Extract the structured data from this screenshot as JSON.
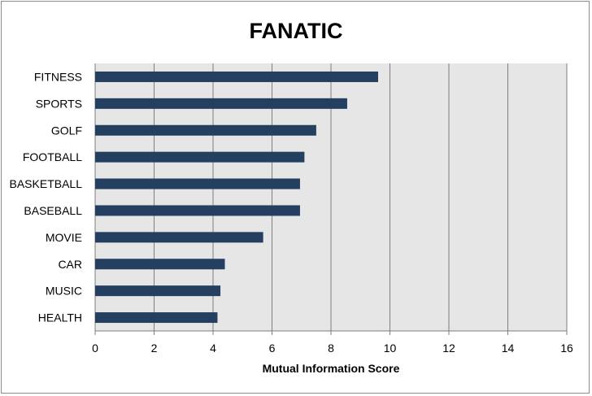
{
  "chart_data": {
    "type": "bar",
    "orientation": "horizontal",
    "title": "FANATIC",
    "xlabel": "Mutual Information Score",
    "ylabel": "",
    "categories": [
      "FITNESS",
      "SPORTS",
      "GOLF",
      "FOOTBALL",
      "BASKETBALL",
      "BASEBALL",
      "MOVIE",
      "CAR",
      "MUSIC",
      "HEALTH"
    ],
    "values": [
      9.6,
      8.55,
      7.5,
      7.1,
      6.95,
      6.95,
      5.7,
      4.4,
      4.25,
      4.15
    ],
    "xlim": [
      0,
      16
    ],
    "xticks": [
      0,
      2,
      4,
      6,
      8,
      10,
      12,
      14,
      16
    ],
    "grid": "vertical",
    "legend": "none",
    "colors": {
      "bar": "#243f60",
      "plot_background": "#e6e6e6",
      "gridline": "#7f7f7f"
    }
  }
}
